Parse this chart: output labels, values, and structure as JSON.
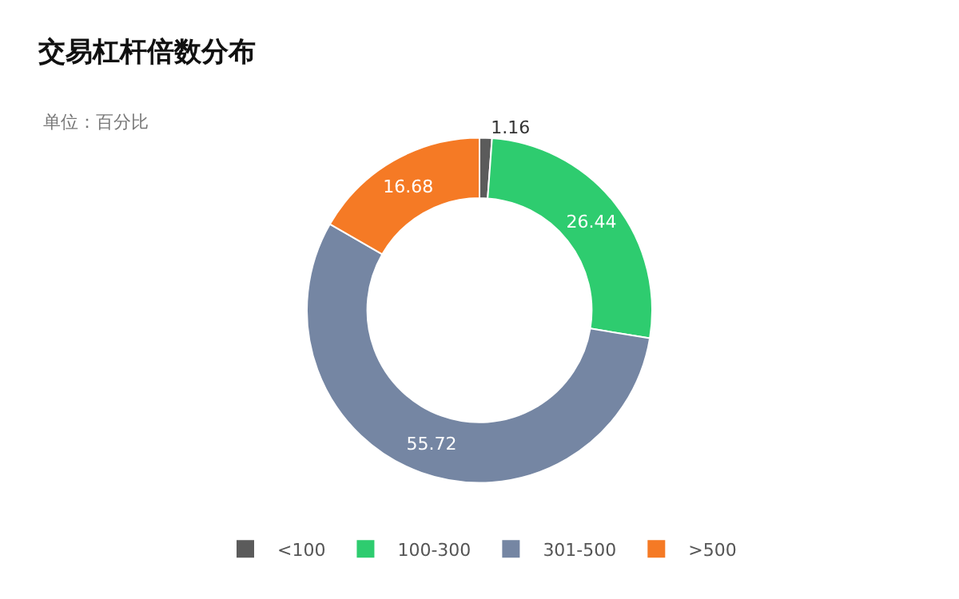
{
  "chart_data": {
    "type": "donut",
    "title": "交易杠杆倍数分布",
    "subtitle": "单位：百分比",
    "categories": [
      "<100",
      "100-300",
      "301-500",
      ">500"
    ],
    "values": [
      1.16,
      26.44,
      55.72,
      16.68
    ],
    "colors": [
      "#5b5b5b",
      "#2ecc6f",
      "#7586a3",
      "#f57a25"
    ],
    "data_labels": true,
    "legend": "bottom"
  }
}
